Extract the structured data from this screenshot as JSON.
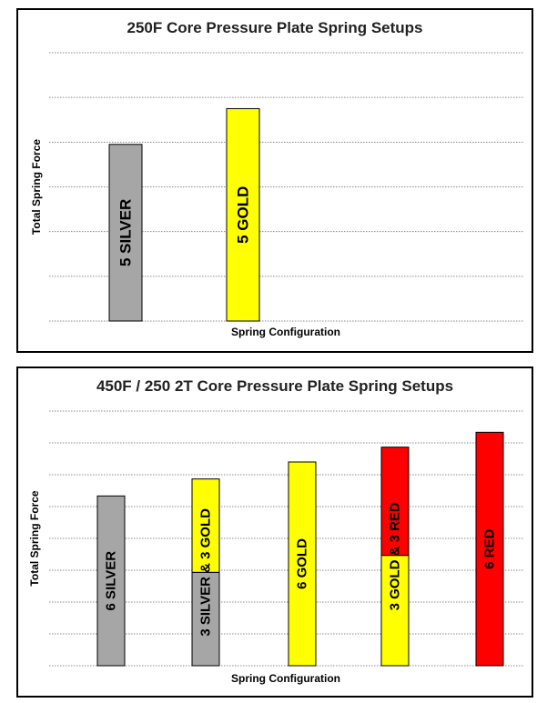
{
  "chart_data": [
    {
      "type": "bar",
      "title": "250F Core Pressure Plate Spring Setups",
      "xlabel": "Spring Configuration",
      "ylabel": "Total Spring Force",
      "ylim": [
        0,
        6
      ],
      "grid": true,
      "categories": [
        "5 SILVER",
        "5 GOLD"
      ],
      "bars": [
        {
          "segments": [
            {
              "label": "5 SILVER",
              "value": 3.95,
              "color": "#a6a6a6"
            }
          ]
        },
        {
          "segments": [
            {
              "label": "5 GOLD",
              "value": 4.75,
              "color": "#ffff00"
            }
          ]
        }
      ]
    },
    {
      "type": "bar",
      "stacked": true,
      "title": "450F / 250 2T Core Pressure Plate Spring Setups",
      "xlabel": "Spring Configuration",
      "ylabel": "Total Spring Force",
      "ylim": [
        0,
        6
      ],
      "grid": true,
      "categories": [
        "6 SILVER",
        "3 SILVER & 3 GOLD",
        "6 GOLD",
        "3 GOLD & 3 RED",
        "6 RED"
      ],
      "bars": [
        {
          "segments": [
            {
              "label": "6 SILVER",
              "value": 4.0,
              "color": "#a6a6a6"
            }
          ]
        },
        {
          "segments": [
            {
              "label": "3 SILVER",
              "value": 2.2,
              "color": "#a6a6a6"
            },
            {
              "label": "& 3 GOLD",
              "value": 2.2,
              "color": "#ffff00"
            }
          ]
        },
        {
          "segments": [
            {
              "label": "6 GOLD",
              "value": 4.8,
              "color": "#ffff00"
            }
          ]
        },
        {
          "segments": [
            {
              "label": "3 GOLD",
              "value": 2.6,
              "color": "#ffff00"
            },
            {
              "label": "& 3 RED",
              "value": 2.55,
              "color": "#ff0000"
            }
          ]
        },
        {
          "segments": [
            {
              "label": "6 RED",
              "value": 5.5,
              "color": "#ff0000"
            }
          ]
        }
      ]
    }
  ]
}
